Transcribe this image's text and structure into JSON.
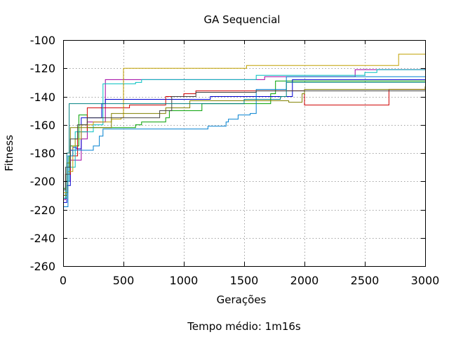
{
  "chart_data": {
    "type": "line",
    "title": "GA Sequencial",
    "xlabel": "Gerações",
    "ylabel": "Fitness",
    "footer": "Tempo médio: 1m16s",
    "xlim": [
      0,
      3000
    ],
    "ylim": [
      -260,
      -100
    ],
    "xticks": [
      0,
      500,
      1000,
      1500,
      2000,
      2500,
      3000
    ],
    "yticks": [
      -260,
      -240,
      -220,
      -200,
      -180,
      -160,
      -140,
      -120,
      -100
    ],
    "grid": true,
    "legend": "none",
    "step": true,
    "series": [
      {
        "color": "#a000a0",
        "points": [
          [
            0,
            -213
          ],
          [
            20,
            -200
          ],
          [
            60,
            -185
          ],
          [
            150,
            -170
          ],
          [
            200,
            -158
          ],
          [
            350,
            -128
          ],
          [
            650,
            -128
          ],
          [
            1650,
            -128
          ],
          [
            1670,
            -126
          ],
          [
            2420,
            -121
          ],
          [
            3000,
            -120
          ]
        ]
      },
      {
        "color": "#00a000",
        "points": [
          [
            0,
            -205
          ],
          [
            20,
            -195
          ],
          [
            50,
            -182
          ],
          [
            60,
            -175
          ],
          [
            130,
            -153
          ],
          [
            200,
            -162
          ],
          [
            550,
            -162
          ],
          [
            600,
            -160
          ],
          [
            650,
            -158
          ],
          [
            850,
            -155
          ],
          [
            880,
            -150
          ],
          [
            1150,
            -145
          ],
          [
            1720,
            -138
          ],
          [
            1760,
            -129
          ],
          [
            3000,
            -129
          ]
        ]
      },
      {
        "color": "#0000d0",
        "points": [
          [
            0,
            -215
          ],
          [
            30,
            -203
          ],
          [
            60,
            -178
          ],
          [
            80,
            -176
          ],
          [
            110,
            -177
          ],
          [
            150,
            -155
          ],
          [
            320,
            -145
          ],
          [
            350,
            -142
          ],
          [
            1200,
            -142
          ],
          [
            1220,
            -140
          ],
          [
            1860,
            -140
          ],
          [
            1900,
            -128
          ],
          [
            3000,
            -128
          ]
        ]
      },
      {
        "color": "#d00000",
        "points": [
          [
            0,
            -210
          ],
          [
            20,
            -195
          ],
          [
            60,
            -182
          ],
          [
            120,
            -165
          ],
          [
            200,
            -148
          ],
          [
            500,
            -148
          ],
          [
            550,
            -146
          ],
          [
            750,
            -146
          ],
          [
            850,
            -140
          ],
          [
            1000,
            -138
          ],
          [
            1100,
            -136
          ],
          [
            2000,
            -146
          ],
          [
            2670,
            -146
          ],
          [
            2700,
            -135
          ],
          [
            3000,
            -133
          ]
        ]
      },
      {
        "color": "#00c0c0",
        "points": [
          [
            0,
            -212
          ],
          [
            20,
            -200
          ],
          [
            50,
            -190
          ],
          [
            100,
            -165
          ],
          [
            250,
            -160
          ],
          [
            330,
            -131
          ],
          [
            600,
            -130
          ],
          [
            650,
            -128
          ],
          [
            1500,
            -128
          ],
          [
            1600,
            -125
          ],
          [
            2500,
            -123
          ],
          [
            2600,
            -121
          ],
          [
            3000,
            -121
          ]
        ]
      },
      {
        "color": "#c0a000",
        "points": [
          [
            0,
            -208
          ],
          [
            40,
            -193
          ],
          [
            80,
            -175
          ],
          [
            100,
            -170
          ],
          [
            150,
            -160
          ],
          [
            250,
            -158
          ],
          [
            400,
            -156
          ],
          [
            480,
            -155
          ],
          [
            500,
            -120
          ],
          [
            600,
            -120
          ],
          [
            1200,
            -120
          ],
          [
            1500,
            -120
          ],
          [
            1520,
            -118
          ],
          [
            2750,
            -118
          ],
          [
            2780,
            -110
          ],
          [
            3000,
            -110
          ]
        ]
      },
      {
        "color": "#0080d0",
        "points": [
          [
            0,
            -218
          ],
          [
            40,
            -182
          ],
          [
            80,
            -178
          ],
          [
            150,
            -178
          ],
          [
            250,
            -175
          ],
          [
            300,
            -168
          ],
          [
            330,
            -163
          ],
          [
            1150,
            -163
          ],
          [
            1200,
            -161
          ],
          [
            1350,
            -158
          ],
          [
            1370,
            -156
          ],
          [
            1450,
            -153
          ],
          [
            1550,
            -152
          ],
          [
            1600,
            -135
          ],
          [
            1820,
            -135
          ],
          [
            1850,
            -126
          ],
          [
            3000,
            -126
          ]
        ]
      },
      {
        "color": "#808000",
        "points": [
          [
            0,
            -210
          ],
          [
            30,
            -187
          ],
          [
            60,
            -162
          ],
          [
            300,
            -162
          ],
          [
            400,
            -152
          ],
          [
            700,
            -152
          ],
          [
            850,
            -148
          ],
          [
            1050,
            -143
          ],
          [
            1500,
            -143
          ],
          [
            1800,
            -143
          ],
          [
            1870,
            -144
          ],
          [
            1980,
            -138
          ],
          [
            2000,
            -135
          ],
          [
            2700,
            -135
          ],
          [
            3000,
            -133
          ]
        ]
      },
      {
        "color": "#404040",
        "points": [
          [
            0,
            -206
          ],
          [
            20,
            -190
          ],
          [
            60,
            -170
          ],
          [
            120,
            -160
          ],
          [
            200,
            -155
          ],
          [
            600,
            -155
          ],
          [
            800,
            -150
          ],
          [
            900,
            -140
          ],
          [
            1100,
            -137
          ],
          [
            1500,
            -137
          ],
          [
            1600,
            -136
          ],
          [
            2400,
            -136
          ],
          [
            3000,
            -136
          ]
        ]
      },
      {
        "color": "#008080",
        "points": [
          [
            0,
            -212
          ],
          [
            30,
            -180
          ],
          [
            50,
            -145
          ],
          [
            300,
            -145
          ],
          [
            400,
            -145
          ],
          [
            1000,
            -145
          ],
          [
            1500,
            -142
          ],
          [
            1800,
            -140
          ],
          [
            1850,
            -130
          ],
          [
            2400,
            -130
          ],
          [
            3000,
            -130
          ]
        ]
      }
    ]
  }
}
